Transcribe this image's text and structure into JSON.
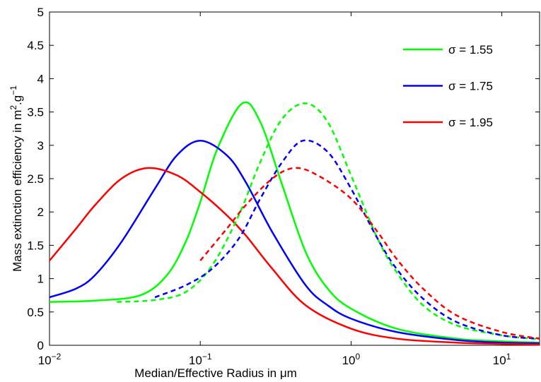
{
  "chart_data": {
    "type": "line",
    "xlabel": "Median/Effective Radius in μm",
    "ylabel": [
      "Mass extinction efficiency in m",
      "2",
      ".g",
      "−1"
    ],
    "xscale": "log",
    "xlim": [
      0.01,
      17.8
    ],
    "ylim": [
      0,
      5
    ],
    "xticks": [
      {
        "value": 0.01,
        "label": "10",
        "power": "−2"
      },
      {
        "value": 0.1,
        "label": "10",
        "power": "−1"
      },
      {
        "value": 1,
        "label": "10",
        "power": "0"
      },
      {
        "value": 10,
        "label": "10",
        "power": "1"
      }
    ],
    "yticks": [
      0,
      0.5,
      1,
      1.5,
      2,
      2.5,
      3,
      3.5,
      4,
      4.5,
      5
    ],
    "grid": false,
    "legend": "upper right",
    "series": [
      {
        "name": "σ = 1.55",
        "color": "#00ff00",
        "dash": false,
        "x": [
          0.01,
          0.02,
          0.04,
          0.06,
          0.08,
          0.1,
          0.13,
          0.19,
          0.25,
          0.35,
          0.5,
          0.7,
          1,
          2,
          5,
          10,
          17.8
        ],
        "values": [
          0.65,
          0.67,
          0.75,
          1.05,
          1.55,
          2.15,
          2.95,
          3.63,
          3.35,
          2.4,
          1.4,
          0.85,
          0.55,
          0.25,
          0.1,
          0.06,
          0.04
        ]
      },
      {
        "name": "σ = 1.75",
        "color": "#0000ff",
        "dash": false,
        "x": [
          0.01,
          0.015,
          0.02,
          0.03,
          0.05,
          0.07,
          0.1,
          0.15,
          0.2,
          0.3,
          0.5,
          0.7,
          1,
          2,
          5,
          10,
          17.8
        ],
        "values": [
          0.72,
          0.85,
          1.05,
          1.55,
          2.35,
          2.85,
          3.07,
          2.85,
          2.45,
          1.7,
          0.9,
          0.6,
          0.4,
          0.2,
          0.08,
          0.04,
          0.03
        ]
      },
      {
        "name": "σ = 1.95",
        "color": "#ff0000",
        "dash": false,
        "x": [
          0.01,
          0.015,
          0.02,
          0.03,
          0.045,
          0.07,
          0.1,
          0.15,
          0.2,
          0.3,
          0.5,
          1,
          2,
          5,
          10,
          17.8
        ],
        "values": [
          1.27,
          1.75,
          2.1,
          2.5,
          2.66,
          2.55,
          2.3,
          1.95,
          1.65,
          1.15,
          0.6,
          0.25,
          0.1,
          0.04,
          0.02,
          0.01
        ]
      },
      {
        "color": "#00ff00",
        "dash": true,
        "x": [
          0.028,
          0.05,
          0.08,
          0.12,
          0.18,
          0.25,
          0.35,
          0.5,
          0.7,
          1,
          1.5,
          2,
          3,
          5,
          10,
          17.8
        ],
        "values": [
          0.65,
          0.68,
          0.8,
          1.2,
          1.95,
          2.75,
          3.4,
          3.63,
          3.35,
          2.55,
          1.6,
          1.1,
          0.6,
          0.3,
          0.15,
          0.09
        ]
      },
      {
        "color": "#0000ff",
        "dash": true,
        "x": [
          0.05,
          0.08,
          0.12,
          0.18,
          0.25,
          0.35,
          0.48,
          0.7,
          1,
          1.5,
          2,
          3,
          5,
          10,
          17.8
        ],
        "values": [
          0.72,
          0.9,
          1.15,
          1.6,
          2.2,
          2.75,
          3.07,
          2.9,
          2.35,
          1.6,
          1.15,
          0.7,
          0.35,
          0.15,
          0.1
        ]
      },
      {
        "color": "#ff0000",
        "dash": true,
        "x": [
          0.1,
          0.15,
          0.2,
          0.3,
          0.42,
          0.6,
          1,
          1.5,
          2,
          3,
          5,
          10,
          17.8
        ],
        "values": [
          1.27,
          1.75,
          2.1,
          2.5,
          2.66,
          2.55,
          2.2,
          1.7,
          1.3,
          0.85,
          0.45,
          0.2,
          0.1
        ]
      }
    ]
  }
}
